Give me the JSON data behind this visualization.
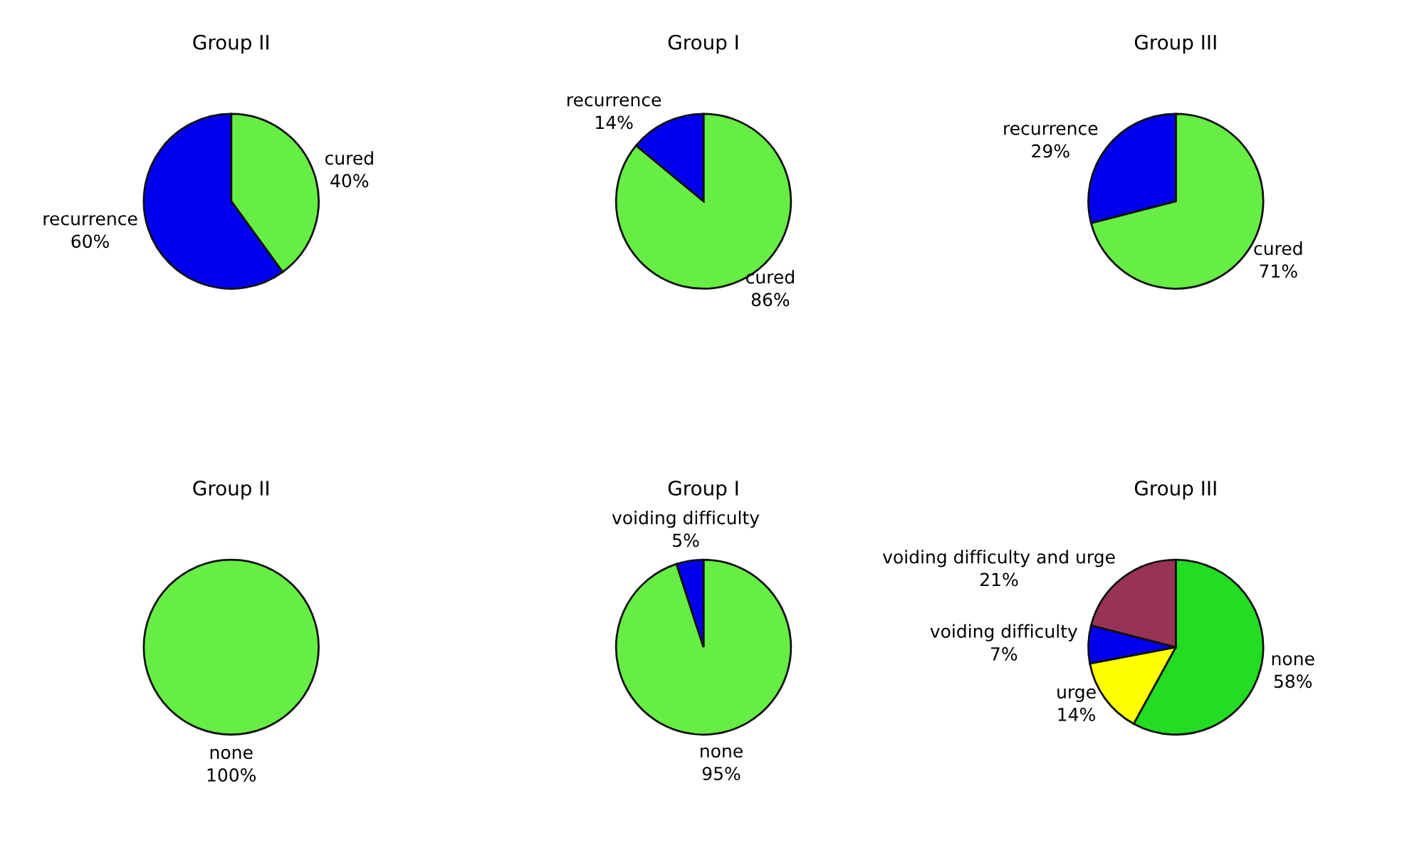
{
  "chart_data": [
    {
      "type": "pie",
      "title": "Group II",
      "categories": [
        "cured",
        "recurrence"
      ],
      "values": [
        40,
        60
      ],
      "colors": [
        "#66ee44",
        "#0000ee"
      ],
      "value_labels": [
        "40%",
        "60%"
      ]
    },
    {
      "type": "pie",
      "title": "Group I",
      "categories": [
        "cured",
        "recurrence"
      ],
      "values": [
        86,
        14
      ],
      "colors": [
        "#66ee44",
        "#0000ee"
      ],
      "value_labels": [
        "86%",
        "14%"
      ]
    },
    {
      "type": "pie",
      "title": "Group III",
      "categories": [
        "cured",
        "recurrence"
      ],
      "values": [
        71,
        29
      ],
      "colors": [
        "#66ee44",
        "#0000ee"
      ],
      "value_labels": [
        "71%",
        "29%"
      ]
    },
    {
      "type": "pie",
      "title": "Group II",
      "categories": [
        "none"
      ],
      "values": [
        100
      ],
      "colors": [
        "#66ee44"
      ],
      "value_labels": [
        "100%"
      ]
    },
    {
      "type": "pie",
      "title": "Group I",
      "categories": [
        "none",
        "voiding difficulty"
      ],
      "values": [
        95,
        5
      ],
      "colors": [
        "#66ee44",
        "#0000ee"
      ],
      "value_labels": [
        "95%",
        "5%"
      ]
    },
    {
      "type": "pie",
      "title": "Group III",
      "categories": [
        "none",
        "urge",
        "voiding difficulty",
        "voiding difficulty and urge"
      ],
      "values": [
        58,
        14,
        7,
        21
      ],
      "colors": [
        "#22dd22",
        "#ffff00",
        "#0000ee",
        "#993355"
      ],
      "value_labels": [
        "58%",
        "14%",
        "7%",
        "21%"
      ]
    }
  ]
}
